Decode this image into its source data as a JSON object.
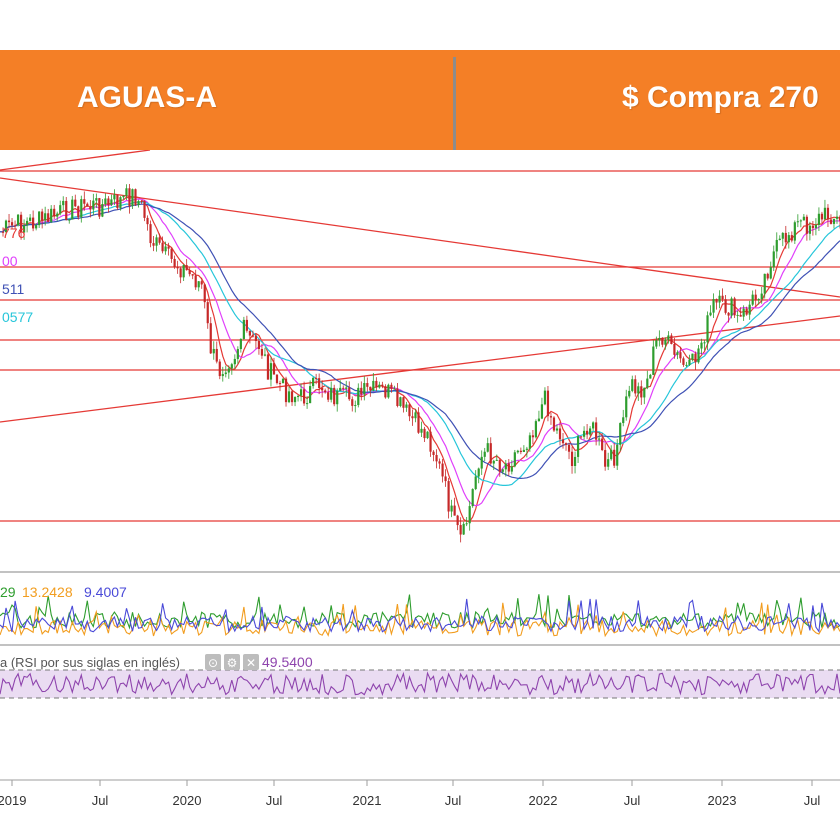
{
  "banner": {
    "ticker": "AGUAS-A",
    "signal": "$ Compra 270",
    "bg_color": "#f47f26",
    "text_color": "#ffffff"
  },
  "chart_data": {
    "type": "line",
    "main_panel": {
      "series_type": "candlestick",
      "ma_legend_values": [
        {
          "text": "776",
          "color": "#e53935"
        },
        {
          "text": "00",
          "color": "#e040fb"
        },
        {
          "text": "511",
          "color": "#3f51b5"
        },
        {
          "text": "0577",
          "color": "#26c6da"
        }
      ],
      "approx_path_x": [
        0,
        0.02,
        0.05,
        0.08,
        0.1,
        0.12,
        0.14,
        0.16,
        0.17,
        0.18,
        0.2,
        0.22,
        0.24,
        0.25,
        0.26,
        0.27,
        0.28,
        0.29,
        0.3,
        0.31,
        0.32,
        0.34,
        0.36,
        0.38,
        0.4,
        0.42,
        0.44,
        0.46,
        0.48,
        0.5,
        0.51,
        0.52,
        0.53,
        0.54,
        0.55,
        0.56,
        0.57,
        0.58,
        0.6,
        0.62,
        0.63,
        0.64,
        0.65,
        0.66,
        0.67,
        0.68,
        0.69,
        0.7,
        0.71,
        0.72,
        0.73,
        0.74,
        0.75,
        0.76,
        0.77,
        0.78,
        0.79,
        0.8,
        0.81,
        0.82,
        0.83,
        0.84,
        0.85,
        0.86,
        0.87,
        0.88,
        0.89,
        0.9,
        0.91,
        0.92,
        0.93,
        0.94,
        0.95,
        0.96,
        0.97,
        0.98,
        0.99,
        1
      ],
      "approx_path_y": [
        0.18,
        0.16,
        0.15,
        0.12,
        0.11,
        0.11,
        0.1,
        0.08,
        0.12,
        0.2,
        0.25,
        0.28,
        0.32,
        0.48,
        0.55,
        0.52,
        0.5,
        0.44,
        0.47,
        0.48,
        0.55,
        0.6,
        0.62,
        0.58,
        0.62,
        0.62,
        0.6,
        0.6,
        0.65,
        0.7,
        0.72,
        0.78,
        0.86,
        0.95,
        1.0,
        0.9,
        0.78,
        0.76,
        0.8,
        0.75,
        0.72,
        0.66,
        0.62,
        0.7,
        0.72,
        0.78,
        0.74,
        0.68,
        0.72,
        0.8,
        0.78,
        0.7,
        0.58,
        0.6,
        0.58,
        0.48,
        0.45,
        0.5,
        0.52,
        0.55,
        0.5,
        0.44,
        0.37,
        0.38,
        0.38,
        0.42,
        0.38,
        0.35,
        0.3,
        0.24,
        0.21,
        0.18,
        0.16,
        0.16,
        0.15,
        0.14,
        0.13,
        0.16
      ]
    },
    "x_tick_labels": [
      "2019",
      "Jul",
      "2020",
      "Jul",
      "2021",
      "Jul",
      "2022",
      "Jul",
      "2023",
      "Jul"
    ],
    "oscillator_panel": {
      "legend_values": [
        {
          "text": "29",
          "color": "#2e9d2e"
        },
        {
          "text": "13.2428",
          "color": "#f29d1f"
        },
        {
          "text": "9.4007",
          "color": "#4a4ad8"
        }
      ]
    },
    "rsi_panel": {
      "label": "a (RSI por sus siglas en inglés)",
      "value": "49.5400",
      "line_color": "#8e44ad"
    },
    "grid": false,
    "legend": "top-left"
  }
}
